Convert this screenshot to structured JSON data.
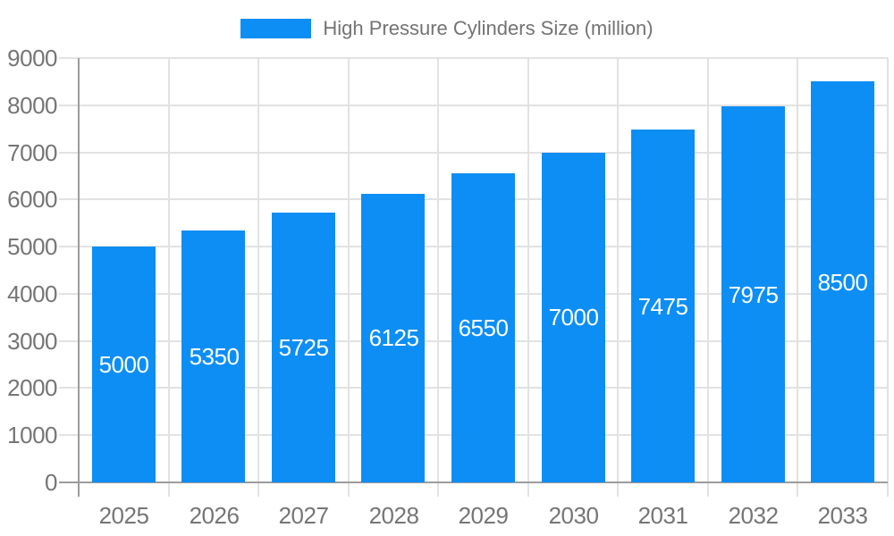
{
  "colors": {
    "bar": "#0d8ef4",
    "grid": "#e2e2e2",
    "axis": "#9c9c9c",
    "axis_text": "#757575",
    "title_text": "#737373",
    "bar_label_text": "#ffffff",
    "background": "#ffffff"
  },
  "chart_data": {
    "type": "bar",
    "title": "High Pressure Cylinders Size (million)",
    "series": [
      {
        "name": "High Pressure Cylinders Size (million)",
        "values": [
          5000,
          5350,
          5725,
          6125,
          6550,
          7000,
          7475,
          7975,
          8500
        ]
      }
    ],
    "categories": [
      "2025",
      "2026",
      "2027",
      "2028",
      "2029",
      "2030",
      "2031",
      "2032",
      "2033"
    ],
    "xlabel": "",
    "ylabel": "",
    "ylim": [
      0,
      9000
    ],
    "ytick_step": 1000,
    "yticks": [
      0,
      1000,
      2000,
      3000,
      4000,
      5000,
      6000,
      7000,
      8000,
      9000
    ],
    "grid": true,
    "legend_position": "top-center",
    "value_labels": "inside-center-white"
  }
}
